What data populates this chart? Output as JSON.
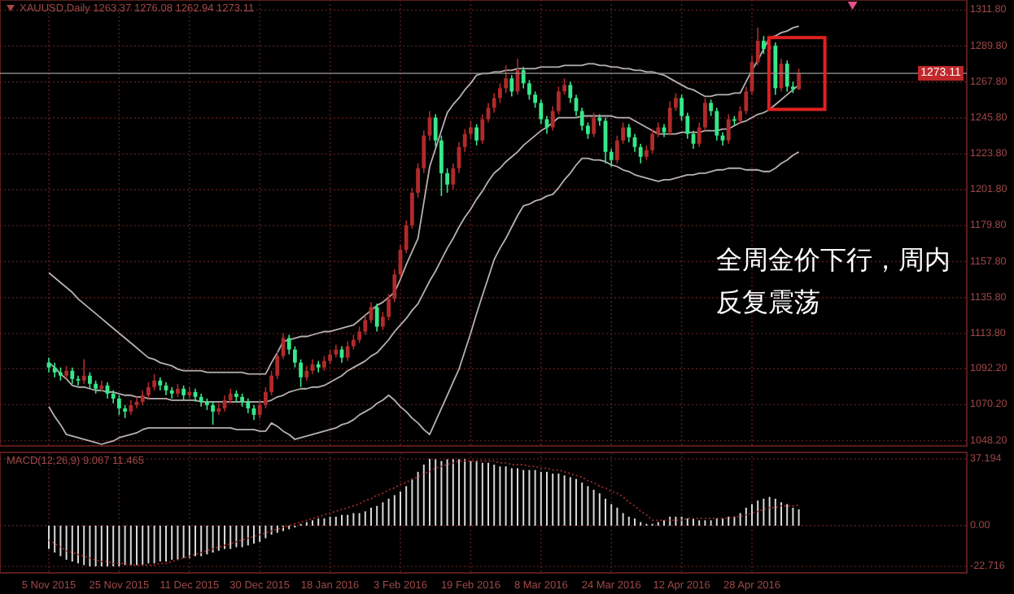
{
  "chart_data": [
    {
      "type": "candlestick",
      "title": "XAUUSD,Daily 1263.37 1276.08 1262.94 1273.11",
      "categories": [
        null,
        null,
        null,
        null,
        null,
        null,
        null,
        null,
        null,
        null,
        null,
        null,
        null,
        null,
        null,
        null,
        null,
        null,
        null,
        null,
        null,
        null,
        null,
        null,
        null,
        null,
        null,
        null,
        null,
        null,
        null,
        null,
        null,
        null,
        null,
        null,
        null,
        null,
        null,
        null,
        null,
        null,
        null,
        null,
        null,
        null,
        null,
        null,
        null,
        null,
        null,
        null,
        null,
        null,
        null,
        null,
        null,
        null,
        null,
        null,
        null,
        null,
        null,
        null,
        null,
        null,
        null,
        null,
        null,
        null,
        null,
        null,
        null,
        null,
        null,
        null,
        null,
        null,
        null,
        null,
        null,
        null,
        null,
        null,
        null,
        null,
        null,
        null,
        null,
        null,
        null,
        null,
        null,
        null,
        null,
        null,
        null,
        null,
        null,
        null,
        null,
        null,
        null,
        null,
        null,
        null,
        null,
        null,
        null,
        null,
        null,
        null,
        null,
        null,
        null,
        null,
        null,
        null,
        null,
        null,
        null,
        null,
        null,
        null,
        null,
        null,
        null,
        null,
        null
      ],
      "ohlc": [
        [
          1096,
          1099,
          1090,
          1093
        ],
        [
          1093,
          1096,
          1087,
          1090
        ],
        [
          1090,
          1093,
          1085,
          1088
        ],
        [
          1088,
          1094,
          1086,
          1091
        ],
        [
          1091,
          1093,
          1083,
          1086
        ],
        [
          1086,
          1088,
          1082,
          1085
        ],
        [
          1085,
          1098,
          1083,
          1088
        ],
        [
          1088,
          1090,
          1080,
          1083
        ],
        [
          1083,
          1085,
          1077,
          1080
        ],
        [
          1080,
          1085,
          1078,
          1082
        ],
        [
          1082,
          1084,
          1074,
          1077
        ],
        [
          1077,
          1079,
          1071,
          1074
        ],
        [
          1074,
          1076,
          1064,
          1068
        ],
        [
          1068,
          1070,
          1062,
          1066
        ],
        [
          1066,
          1073,
          1064,
          1070
        ],
        [
          1070,
          1075,
          1068,
          1072
        ],
        [
          1072,
          1079,
          1070,
          1076
        ],
        [
          1076,
          1084,
          1074,
          1081
        ],
        [
          1081,
          1089,
          1079,
          1085
        ],
        [
          1085,
          1087,
          1079,
          1082
        ],
        [
          1082,
          1084,
          1076,
          1079
        ],
        [
          1079,
          1081,
          1074,
          1077
        ],
        [
          1077,
          1083,
          1075,
          1080
        ],
        [
          1080,
          1082,
          1073,
          1076
        ],
        [
          1076,
          1081,
          1074,
          1078
        ],
        [
          1078,
          1080,
          1072,
          1075
        ],
        [
          1075,
          1077,
          1069,
          1072
        ],
        [
          1072,
          1074,
          1067,
          1070
        ],
        [
          1070,
          1072,
          1058,
          1066
        ],
        [
          1066,
          1071,
          1064,
          1068
        ],
        [
          1068,
          1076,
          1066,
          1073
        ],
        [
          1073,
          1080,
          1071,
          1077
        ],
        [
          1077,
          1079,
          1072,
          1075
        ],
        [
          1075,
          1077,
          1069,
          1072
        ],
        [
          1072,
          1074,
          1065,
          1068
        ],
        [
          1068,
          1070,
          1061,
          1064
        ],
        [
          1064,
          1073,
          1062,
          1070
        ],
        [
          1070,
          1081,
          1068,
          1078
        ],
        [
          1078,
          1091,
          1076,
          1088
        ],
        [
          1088,
          1103,
          1086,
          1100
        ],
        [
          1100,
          1114,
          1098,
          1111
        ],
        [
          1111,
          1113,
          1101,
          1104
        ],
        [
          1104,
          1106,
          1093,
          1096
        ],
        [
          1096,
          1098,
          1081,
          1087
        ],
        [
          1087,
          1094,
          1085,
          1091
        ],
        [
          1091,
          1098,
          1089,
          1095
        ],
        [
          1095,
          1097,
          1090,
          1093
        ],
        [
          1093,
          1100,
          1091,
          1097
        ],
        [
          1097,
          1104,
          1095,
          1101
        ],
        [
          1101,
          1107,
          1099,
          1104
        ],
        [
          1104,
          1106,
          1096,
          1099
        ],
        [
          1099,
          1109,
          1097,
          1106
        ],
        [
          1106,
          1113,
          1104,
          1110
        ],
        [
          1110,
          1118,
          1108,
          1115
        ],
        [
          1115,
          1125,
          1113,
          1122
        ],
        [
          1122,
          1133,
          1120,
          1130
        ],
        [
          1130,
          1132,
          1115,
          1118
        ],
        [
          1118,
          1127,
          1116,
          1124
        ],
        [
          1124,
          1138,
          1122,
          1135
        ],
        [
          1135,
          1153,
          1133,
          1150
        ],
        [
          1150,
          1168,
          1148,
          1165
        ],
        [
          1165,
          1183,
          1163,
          1180
        ],
        [
          1180,
          1203,
          1178,
          1200
        ],
        [
          1200,
          1218,
          1197,
          1215
        ],
        [
          1215,
          1238,
          1212,
          1235
        ],
        [
          1235,
          1250,
          1232,
          1246
        ],
        [
          1246,
          1248,
          1228,
          1232
        ],
        [
          1232,
          1235,
          1198,
          1212
        ],
        [
          1212,
          1215,
          1200,
          1205
        ],
        [
          1205,
          1218,
          1202,
          1215
        ],
        [
          1215,
          1231,
          1212,
          1228
        ],
        [
          1228,
          1239,
          1225,
          1236
        ],
        [
          1236,
          1244,
          1233,
          1240
        ],
        [
          1240,
          1242,
          1229,
          1232
        ],
        [
          1232,
          1248,
          1230,
          1245
        ],
        [
          1245,
          1255,
          1243,
          1252
        ],
        [
          1252,
          1261,
          1249,
          1258
        ],
        [
          1258,
          1267,
          1255,
          1264
        ],
        [
          1264,
          1278,
          1261,
          1270
        ],
        [
          1270,
          1272,
          1259,
          1262
        ],
        [
          1262,
          1282,
          1260,
          1275
        ],
        [
          1275,
          1277,
          1264,
          1267
        ],
        [
          1267,
          1269,
          1257,
          1260
        ],
        [
          1260,
          1262,
          1252,
          1255
        ],
        [
          1255,
          1257,
          1242,
          1245
        ],
        [
          1245,
          1247,
          1236,
          1240
        ],
        [
          1240,
          1253,
          1238,
          1250
        ],
        [
          1250,
          1265,
          1248,
          1262
        ],
        [
          1262,
          1270,
          1260,
          1266
        ],
        [
          1266,
          1268,
          1255,
          1258
        ],
        [
          1258,
          1260,
          1247,
          1250
        ],
        [
          1250,
          1252,
          1238,
          1241
        ],
        [
          1241,
          1243,
          1233,
          1236
        ],
        [
          1236,
          1249,
          1234,
          1246
        ],
        [
          1246,
          1248,
          1241,
          1244
        ],
        [
          1244,
          1246,
          1218,
          1225
        ],
        [
          1225,
          1227,
          1216,
          1220
        ],
        [
          1220,
          1235,
          1218,
          1232
        ],
        [
          1232,
          1243,
          1230,
          1240
        ],
        [
          1240,
          1242,
          1231,
          1234
        ],
        [
          1234,
          1236,
          1225,
          1228
        ],
        [
          1228,
          1230,
          1218,
          1222
        ],
        [
          1222,
          1229,
          1220,
          1226
        ],
        [
          1226,
          1239,
          1224,
          1236
        ],
        [
          1236,
          1243,
          1234,
          1240
        ],
        [
          1240,
          1242,
          1234,
          1237
        ],
        [
          1237,
          1256,
          1235,
          1252
        ],
        [
          1252,
          1261,
          1250,
          1258
        ],
        [
          1258,
          1260,
          1244,
          1247
        ],
        [
          1247,
          1249,
          1233,
          1236
        ],
        [
          1236,
          1238,
          1227,
          1230
        ],
        [
          1230,
          1243,
          1228,
          1240
        ],
        [
          1240,
          1258,
          1238,
          1255
        ],
        [
          1255,
          1257,
          1247,
          1250
        ],
        [
          1250,
          1252,
          1232,
          1235
        ],
        [
          1235,
          1237,
          1229,
          1232
        ],
        [
          1232,
          1248,
          1230,
          1245
        ],
        [
          1245,
          1247,
          1241,
          1244
        ],
        [
          1244,
          1253,
          1242,
          1250
        ],
        [
          1250,
          1265,
          1248,
          1262
        ],
        [
          1262,
          1284,
          1260,
          1280
        ],
        [
          1280,
          1301,
          1278,
          1293
        ],
        [
          1293,
          1296,
          1285,
          1288
        ],
        [
          1288,
          1294,
          1282,
          1290
        ],
        [
          1290,
          1292,
          1260,
          1264
        ],
        [
          1264,
          1282,
          1262,
          1279
        ],
        [
          1279,
          1281,
          1262,
          1265
        ],
        [
          1265,
          1268,
          1261,
          1263.37
        ],
        [
          1263.37,
          1276.08,
          1262.94,
          1273.11
        ]
      ],
      "colors": [
        "#36e88a",
        "#36e88a",
        "#36e88a",
        "#b02a2a",
        "#36e88a",
        "#36e88a",
        "#b02a2a",
        "#36e88a",
        "#36e88a",
        "#b02a2a",
        "#36e88a",
        "#36e88a",
        "#36e88a",
        "#36e88a",
        "#b02a2a",
        "#b02a2a",
        "#b02a2a",
        "#b02a2a",
        "#b02a2a",
        "#36e88a",
        "#36e88a",
        "#36e88a",
        "#b02a2a",
        "#36e88a",
        "#b02a2a",
        "#36e88a",
        "#36e88a",
        "#36e88a",
        "#36e88a",
        "#b02a2a",
        "#b02a2a",
        "#b02a2a",
        "#36e88a",
        "#36e88a",
        "#36e88a",
        "#36e88a",
        "#b02a2a",
        "#b02a2a",
        "#b02a2a",
        "#b02a2a",
        "#b02a2a",
        "#36e88a",
        "#36e88a",
        "#36e88a",
        "#b02a2a",
        "#b02a2a",
        "#36e88a",
        "#b02a2a",
        "#b02a2a",
        "#b02a2a",
        "#36e88a",
        "#b02a2a",
        "#b02a2a",
        "#b02a2a",
        "#b02a2a",
        "#b02a2a",
        "#36e88a",
        "#b02a2a",
        "#b02a2a",
        "#b02a2a",
        "#b02a2a",
        "#b02a2a",
        "#b02a2a",
        "#b02a2a",
        "#b02a2a",
        "#b02a2a",
        "#36e88a",
        "#36e88a",
        "#36e88a",
        "#b02a2a",
        "#b02a2a",
        "#b02a2a",
        "#b02a2a",
        "#36e88a",
        "#b02a2a",
        "#b02a2a",
        "#b02a2a",
        "#b02a2a",
        "#b02a2a",
        "#36e88a",
        "#b02a2a",
        "#36e88a",
        "#36e88a",
        "#36e88a",
        "#36e88a",
        "#36e88a",
        "#b02a2a",
        "#b02a2a",
        "#b02a2a",
        "#36e88a",
        "#36e88a",
        "#36e88a",
        "#36e88a",
        "#b02a2a",
        "#36e88a",
        "#36e88a",
        "#36e88a",
        "#b02a2a",
        "#b02a2a",
        "#36e88a",
        "#36e88a",
        "#36e88a",
        "#b02a2a",
        "#b02a2a",
        "#b02a2a",
        "#36e88a",
        "#b02a2a",
        "#b02a2a",
        "#36e88a",
        "#36e88a",
        "#36e88a",
        "#b02a2a",
        "#b02a2a",
        "#36e88a",
        "#36e88a",
        "#36e88a",
        "#b02a2a",
        "#36e88a",
        "#b02a2a",
        "#b02a2a",
        "#b02a2a",
        "#b02a2a",
        "#36e88a",
        "#b02a2a",
        "#36e88a",
        "#b02a2a",
        "#36e88a",
        "#36e88a",
        "#b02a2a"
      ],
      "series": [
        {
          "type": "line",
          "color": "#b8b0b0",
          "values": [
            1151,
            1148,
            1145,
            1142,
            1139,
            1135,
            1132,
            1129,
            1126,
            1123,
            1120,
            1117,
            1114,
            1111,
            1108,
            1105,
            1102,
            1099,
            1098,
            1096,
            1095,
            1094,
            1092,
            1091,
            1091,
            1091,
            1091,
            1090,
            1090,
            1090,
            1090,
            1090,
            1090,
            1090,
            1089,
            1089,
            1089,
            1089,
            1096,
            1102,
            1109,
            1110,
            1111,
            1112,
            1112,
            1113,
            1114,
            1115,
            1115,
            1116,
            1117,
            1118,
            1119,
            1122,
            1125,
            1128,
            1131,
            1133,
            1136,
            1139,
            1147,
            1156,
            1164,
            1172,
            1194,
            1216,
            1227,
            1238,
            1249,
            1254,
            1258,
            1263,
            1267,
            1272,
            1273,
            1273,
            1274,
            1274,
            1275,
            1275,
            1276,
            1276,
            1276,
            1276,
            1277,
            1277,
            1277,
            1277,
            1278,
            1278,
            1278,
            1278,
            1279,
            1279,
            1278,
            1278,
            1277,
            1277,
            1276,
            1276,
            1275,
            1275,
            1274,
            1274,
            1273,
            1272,
            1270,
            1268,
            1266,
            1264,
            1263,
            1261,
            1259,
            1259,
            1260,
            1260,
            1260,
            1261,
            1261,
            1268,
            1275,
            1281,
            1288,
            1295,
            1296,
            1298,
            1299,
            1301,
            1302
          ]
        },
        {
          "type": "line",
          "color": "#b8b0b0",
          "values": [
            1096,
            1093,
            1089,
            1086,
            1082,
            1081,
            1081,
            1080,
            1079,
            1079,
            1078,
            1078,
            1077,
            1076,
            1076,
            1075,
            1075,
            1074,
            1074,
            1074,
            1074,
            1073,
            1073,
            1073,
            1073,
            1073,
            1072,
            1072,
            1072,
            1072,
            1072,
            1072,
            1072,
            1072,
            1072,
            1072,
            1072,
            1072,
            1073,
            1075,
            1076,
            1078,
            1079,
            1080,
            1080,
            1081,
            1081,
            1082,
            1084,
            1086,
            1088,
            1091,
            1093,
            1095,
            1097,
            1100,
            1102,
            1106,
            1110,
            1115,
            1119,
            1123,
            1128,
            1132,
            1139,
            1146,
            1152,
            1159,
            1166,
            1172,
            1179,
            1185,
            1190,
            1196,
            1201,
            1207,
            1212,
            1215,
            1219,
            1222,
            1225,
            1229,
            1232,
            1235,
            1238,
            1240,
            1243,
            1246,
            1246,
            1246,
            1246,
            1247,
            1247,
            1247,
            1247,
            1247,
            1247,
            1246,
            1246,
            1246,
            1244,
            1242,
            1240,
            1238,
            1236,
            1236,
            1236,
            1236,
            1237,
            1237,
            1237,
            1237,
            1238,
            1238,
            1238,
            1239,
            1239,
            1241,
            1243,
            1244,
            1246,
            1248,
            1249,
            1251,
            1254,
            1257,
            1260,
            1263,
            1266
          ]
        },
        {
          "type": "line",
          "color": "#b8b0b0",
          "values": [
            1069,
            1063,
            1058,
            1052,
            1051,
            1050,
            1049,
            1048,
            1047,
            1046,
            1047,
            1048,
            1050,
            1051,
            1052,
            1053,
            1055,
            1056,
            1056,
            1056,
            1056,
            1056,
            1056,
            1056,
            1056,
            1056,
            1056,
            1056,
            1056,
            1056,
            1056,
            1056,
            1055,
            1055,
            1055,
            1055,
            1054,
            1054,
            1059,
            1057,
            1054,
            1052,
            1049,
            1050,
            1051,
            1052,
            1053,
            1054,
            1055,
            1056,
            1058,
            1059,
            1061,
            1064,
            1066,
            1068,
            1071,
            1073,
            1076,
            1073,
            1069,
            1066,
            1062,
            1059,
            1055,
            1052,
            1060,
            1068,
            1076,
            1084,
            1092,
            1103,
            1114,
            1126,
            1137,
            1148,
            1159,
            1166,
            1172,
            1179,
            1186,
            1192,
            1193,
            1195,
            1196,
            1198,
            1199,
            1203,
            1208,
            1212,
            1217,
            1221,
            1221,
            1220,
            1220,
            1219,
            1217,
            1216,
            1214,
            1213,
            1211,
            1210,
            1209,
            1208,
            1207,
            1208,
            1208,
            1209,
            1210,
            1211,
            1211,
            1212,
            1212,
            1213,
            1214,
            1214,
            1215,
            1215,
            1215,
            1214,
            1214,
            1214,
            1213,
            1213,
            1215,
            1218,
            1220,
            1223,
            1225
          ]
        }
      ],
      "ylim": [
        1045,
        1318
      ],
      "yticks": [
        {
          "value": 1311.8,
          "label": "1311.80"
        },
        {
          "value": 1289.8,
          "label": "1289.80"
        },
        {
          "value": 1267.8,
          "label": "1267.80"
        },
        {
          "value": 1245.8,
          "label": "1245.80"
        },
        {
          "value": 1223.8,
          "label": "1223.80"
        },
        {
          "value": 1201.8,
          "label": "1201.80"
        },
        {
          "value": 1179.8,
          "label": "1179.80"
        },
        {
          "value": 1157.8,
          "label": "1157.80"
        },
        {
          "value": 1135.8,
          "label": "1135.80"
        },
        {
          "value": 1113.8,
          "label": "1113.80"
        },
        {
          "value": 1092.2,
          "label": "1092.20"
        },
        {
          "value": 1070.2,
          "label": "1070.20"
        },
        {
          "value": 1048.2,
          "label": "1048.20"
        }
      ],
      "ref_lines": [
        {
          "axis": "y",
          "value": 1273.11,
          "label": "1273.11",
          "color": "#9a9a9a"
        }
      ],
      "annotations": [
        "全周金价下行，周内反复震荡"
      ],
      "grid": true
    },
    {
      "type": "bar",
      "title": "MACD(12,26,9) 9.067 11.465",
      "categories": [
        "5 Nov 2015",
        null,
        null,
        null,
        null,
        null,
        null,
        null,
        null,
        null,
        null,
        null,
        "25 Nov 2015",
        null,
        null,
        null,
        null,
        null,
        null,
        null,
        null,
        null,
        null,
        null,
        "11 Dec 2015",
        null,
        null,
        null,
        null,
        null,
        null,
        null,
        null,
        null,
        null,
        null,
        "30 Dec 2015",
        null,
        null,
        null,
        null,
        null,
        null,
        null,
        null,
        null,
        null,
        null,
        "18 Jan 2016",
        null,
        null,
        null,
        null,
        null,
        null,
        null,
        null,
        null,
        null,
        null,
        "3 Feb 2016",
        null,
        null,
        null,
        null,
        null,
        null,
        null,
        null,
        null,
        null,
        null,
        "19 Feb 2016",
        null,
        null,
        null,
        null,
        null,
        null,
        null,
        null,
        null,
        null,
        null,
        "8 Mar 2016",
        null,
        null,
        null,
        null,
        null,
        null,
        null,
        null,
        null,
        null,
        null,
        "24 Mar 2016",
        null,
        null,
        null,
        null,
        null,
        null,
        null,
        null,
        null,
        null,
        null,
        "12 Apr 2016",
        null,
        null,
        null,
        null,
        null,
        null,
        null,
        null,
        null,
        null,
        null,
        "28 Apr 2016",
        null,
        null,
        null,
        null,
        null,
        null,
        null,
        null
      ],
      "series": [
        {
          "type": "bar",
          "color": "#d8d8d8",
          "values": [
            -13,
            -15,
            -17,
            -19,
            -20,
            -21,
            -22,
            -22.716,
            -22.716,
            -22.716,
            -22.716,
            -22.716,
            -22.716,
            -22,
            -22,
            -22,
            -22,
            -21,
            -21,
            -20,
            -20,
            -19,
            -19,
            -18,
            -18,
            -17,
            -17,
            -16,
            -15,
            -14,
            -13,
            -13,
            -12,
            -12,
            -11,
            -10,
            -9,
            -7,
            -5,
            -4,
            -3,
            -2,
            -1,
            1,
            2,
            3,
            4,
            4,
            5,
            5,
            6,
            6,
            7,
            7,
            8,
            10,
            11,
            13,
            15,
            17,
            19,
            22,
            26,
            30,
            34,
            37.194,
            37,
            36,
            37,
            37,
            37,
            37,
            36,
            36,
            35,
            35,
            34,
            33,
            33,
            32,
            32,
            31,
            31,
            31,
            30,
            30,
            29,
            29,
            28,
            27,
            26,
            24,
            22,
            20,
            18,
            15,
            12,
            10,
            7,
            5,
            4,
            2,
            1,
            1,
            2,
            3,
            5,
            5,
            5,
            4,
            4,
            3,
            3,
            3,
            4,
            4,
            5,
            5,
            7,
            10,
            12,
            14,
            15,
            16,
            15,
            13,
            12,
            10,
            9.067
          ]
        },
        {
          "type": "line",
          "color": "#a02828",
          "line_style": "dotted",
          "values": [
            -8,
            -10,
            -12,
            -14,
            -15,
            -16,
            -17,
            -18,
            -19,
            -20,
            -20,
            -21,
            -21,
            -21,
            -22,
            -22,
            -22,
            -22,
            -22,
            -21,
            -21,
            -20,
            -19,
            -18,
            -17,
            -16,
            -15,
            -14,
            -13,
            -12,
            -11,
            -10,
            -9,
            -8,
            -7,
            -6,
            -5,
            -4,
            -3,
            -2,
            -1,
            0,
            1,
            2,
            3,
            4,
            5,
            6,
            7,
            8,
            9,
            10,
            11,
            12,
            14,
            15,
            17,
            18,
            20,
            21,
            23,
            24,
            26,
            27,
            29,
            30,
            32,
            33,
            34,
            35,
            36,
            36,
            36,
            36,
            36,
            36,
            36,
            35,
            35,
            34,
            34,
            34,
            33,
            33,
            32,
            32,
            31,
            31,
            30,
            29,
            28,
            27,
            25,
            24,
            22,
            21,
            19,
            18,
            16,
            13,
            11,
            8,
            6,
            3,
            3,
            3,
            3,
            3,
            3,
            4,
            4,
            4,
            4,
            4,
            4,
            4,
            4,
            5,
            5,
            6,
            7,
            8,
            9,
            10,
            10,
            11,
            11,
            11,
            11.465
          ]
        }
      ],
      "ylim": [
        -26.3,
        40.8
      ],
      "yticks": [
        37.194,
        {
          "value": 0,
          "label": "0.00"
        },
        -22.716
      ],
      "grid": true
    }
  ]
}
